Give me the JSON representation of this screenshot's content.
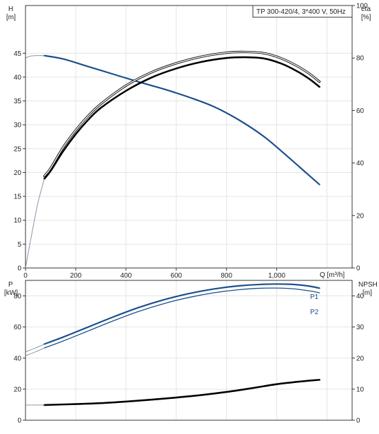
{
  "chart_data": [
    {
      "type": "line",
      "panel": "top",
      "title": "TP 300-420/4, 3*400 V, 50Hz",
      "xlabel": "Q [m³/h]",
      "ylabel_left_name": "H",
      "ylabel_left_unit": "[m]",
      "ylabel_right_name": "eta",
      "ylabel_right_unit": "[%]",
      "xlim": [
        0,
        1300
      ],
      "ylim_left": [
        0,
        55
      ],
      "ylim_right": [
        0,
        100
      ],
      "x_ticks": [
        0,
        200,
        400,
        600,
        800,
        1000
      ],
      "x_tick_labels": [
        "0",
        "200",
        "400",
        "600",
        "800",
        "1,000"
      ],
      "y_left_ticks": [
        0,
        5,
        10,
        15,
        20,
        25,
        30,
        35,
        40,
        45
      ],
      "y_right_ticks": [
        0,
        20,
        40,
        60,
        80,
        100
      ],
      "grid": true,
      "colors": {
        "head": "#1a4f8c",
        "eta": "#000000",
        "extension": "#7a8aa0"
      },
      "series": [
        {
          "axis": "left",
          "style": "blue-thick",
          "x": [
            75,
            150,
            250,
            350,
            450,
            550,
            650,
            750,
            850,
            950,
            1040,
            1120,
            1170
          ],
          "values": [
            44.5,
            43.8,
            42.2,
            40.6,
            39.0,
            37.5,
            35.8,
            33.8,
            31.0,
            27.5,
            23.5,
            19.8,
            17.5
          ]
        },
        {
          "axis": "left",
          "style": "thin-extension",
          "x": [
            0,
            20,
            40,
            60,
            75
          ],
          "values": [
            44.0,
            44.4,
            44.5,
            44.5,
            44.5
          ]
        },
        {
          "axis": "right",
          "style": "black-outline",
          "x": [
            75,
            100,
            150,
            200,
            250,
            300,
            400,
            500,
            600,
            700,
            800,
            875,
            950,
            1020,
            1080,
            1130,
            1170
          ],
          "values": [
            35,
            38,
            46,
            52.5,
            58,
            62.5,
            69.5,
            74.5,
            78,
            80.5,
            82,
            82.3,
            81.8,
            79.8,
            77,
            74,
            71
          ]
        },
        {
          "axis": "right",
          "style": "black-thick",
          "x": [
            75,
            100,
            150,
            200,
            250,
            300,
            400,
            500,
            600,
            700,
            800,
            875,
            950,
            1020,
            1080,
            1130,
            1170
          ],
          "values": [
            34,
            37,
            44.5,
            51,
            56.5,
            61,
            67.5,
            72.5,
            76,
            78.5,
            80,
            80.3,
            79.8,
            77.8,
            75,
            72,
            69
          ]
        },
        {
          "axis": "right",
          "style": "thin-extension",
          "x": [
            0,
            25,
            50,
            75
          ],
          "values": [
            0,
            13,
            25,
            34
          ]
        }
      ]
    },
    {
      "type": "line",
      "panel": "bottom",
      "xlim": [
        0,
        1300
      ],
      "ylim_left": [
        0,
        90
      ],
      "ylim_right": [
        0,
        45
      ],
      "ylabel_left_name": "P",
      "ylabel_left_unit": "[kW]",
      "ylabel_right_name": "NPSH",
      "ylabel_right_unit": "[m]",
      "y_left_ticks": [
        0,
        20,
        40,
        60,
        80
      ],
      "y_right_ticks": [
        0,
        10,
        20,
        30,
        40
      ],
      "grid": true,
      "colors": {
        "power": "#1a4f8c",
        "npsh": "#000000",
        "extension": "#7a8aa0"
      },
      "series": [
        {
          "name": "P1",
          "axis": "left",
          "style": "blue-thick",
          "x": [
            75,
            150,
            250,
            350,
            450,
            550,
            650,
            750,
            850,
            950,
            1050,
            1120,
            1170
          ],
          "values": [
            49,
            53.5,
            60,
            66.5,
            72.5,
            77.5,
            81.5,
            84.5,
            86.5,
            87.5,
            87.5,
            86.5,
            85
          ]
        },
        {
          "name": "P2",
          "axis": "left",
          "style": "blue-thin",
          "x": [
            75,
            150,
            250,
            350,
            450,
            550,
            650,
            750,
            850,
            950,
            1050,
            1120,
            1170
          ],
          "values": [
            46.5,
            51,
            57.5,
            64,
            70,
            75,
            79,
            82,
            84,
            85,
            84.8,
            83.5,
            82
          ]
        },
        {
          "axis": "left",
          "style": "thin-extension",
          "x": [
            0,
            40,
            75
          ],
          "values": [
            44,
            46.5,
            49
          ]
        },
        {
          "axis": "left",
          "style": "thin-extension",
          "x": [
            0,
            40,
            75
          ],
          "values": [
            41.5,
            44,
            46.5
          ]
        },
        {
          "axis": "right",
          "style": "black-thick",
          "x": [
            75,
            200,
            300,
            400,
            500,
            600,
            700,
            800,
            900,
            1000,
            1100,
            1170
          ],
          "values": [
            4.9,
            5.2,
            5.5,
            6.0,
            6.6,
            7.3,
            8.1,
            9.1,
            10.3,
            11.6,
            12.5,
            13.0
          ]
        },
        {
          "axis": "right",
          "style": "thin-extension",
          "x": [
            0,
            75
          ],
          "values": [
            4.9,
            4.9
          ]
        }
      ],
      "legend_labels": [
        "P1",
        "P2"
      ]
    }
  ]
}
